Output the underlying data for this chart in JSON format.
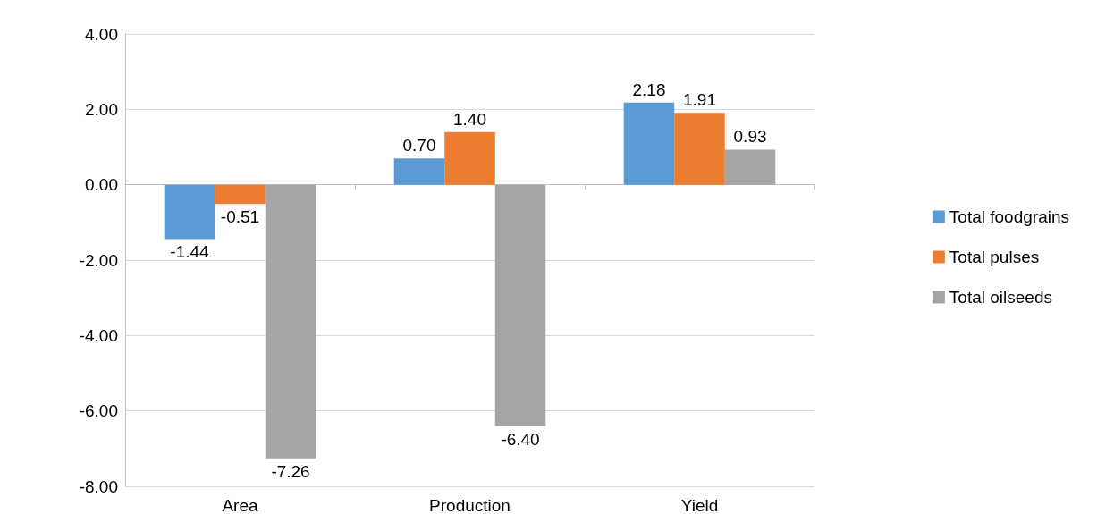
{
  "chart_data": {
    "type": "bar",
    "categories": [
      "Area",
      "Production",
      "Yield"
    ],
    "series": [
      {
        "name": "Total foodgrains",
        "color": "#5b9bd5",
        "values": [
          -1.44,
          0.7,
          2.18
        ],
        "value_labels": [
          "-1.44",
          "0.70",
          "2.18"
        ]
      },
      {
        "name": "Total pulses",
        "color": "#ed7d31",
        "values": [
          -0.51,
          1.4,
          1.91
        ],
        "value_labels": [
          "-0.51",
          "1.40",
          "1.91"
        ]
      },
      {
        "name": "Total oilseeds",
        "color": "#a5a5a5",
        "values": [
          -7.26,
          -6.4,
          0.93
        ],
        "value_labels": [
          "-7.26",
          "-6.40",
          "0.93"
        ]
      }
    ],
    "ylim": [
      -8,
      4
    ],
    "yticks": [
      {
        "value": -8,
        "label": "-8.00"
      },
      {
        "value": -6,
        "label": "-6.00"
      },
      {
        "value": -4,
        "label": "-4.00"
      },
      {
        "value": -2,
        "label": "-2.00"
      },
      {
        "value": 0,
        "label": "0.00"
      },
      {
        "value": 2,
        "label": "2.00"
      },
      {
        "value": 4,
        "label": "4.00"
      }
    ],
    "grid": "y",
    "legend": "right"
  }
}
